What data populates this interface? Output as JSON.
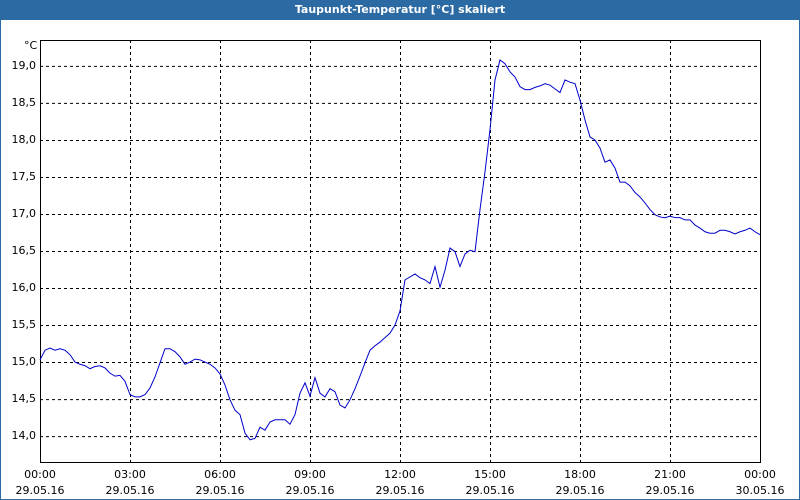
{
  "chart_data": {
    "type": "line",
    "title": "Taupunkt-Temperatur [°C] skaliert",
    "y_unit": "°C",
    "grid": true,
    "x": [
      0,
      10,
      20,
      30,
      40,
      50,
      60,
      70,
      80,
      90,
      100,
      110,
      120,
      130,
      140,
      150,
      160,
      170,
      180,
      190,
      200,
      210,
      220,
      230,
      240,
      250,
      260,
      270,
      280,
      290,
      300,
      310,
      320,
      330,
      340,
      350,
      360,
      370,
      380,
      390,
      400,
      410,
      420,
      430,
      440,
      450,
      460,
      470,
      480,
      490,
      500,
      510,
      520,
      530,
      540,
      550,
      560,
      570,
      580,
      590,
      600,
      610,
      620,
      630,
      640,
      650,
      660,
      670,
      680,
      690,
      700,
      710,
      720,
      730,
      740,
      750,
      760,
      770,
      780,
      790,
      800,
      810,
      820,
      830,
      840,
      850,
      860,
      870,
      880,
      890,
      900,
      910,
      920,
      930,
      940,
      950,
      960,
      970,
      980,
      990,
      1000,
      1010,
      1020,
      1030,
      1040,
      1050,
      1060,
      1070,
      1080,
      1090,
      1100,
      1110,
      1120,
      1130,
      1140,
      1150,
      1160,
      1170,
      1180,
      1190,
      1200,
      1210,
      1220,
      1230,
      1240,
      1250,
      1260,
      1270,
      1280,
      1290,
      1300,
      1310,
      1320,
      1330,
      1340,
      1350,
      1360,
      1370,
      1380,
      1390,
      1400,
      1410,
      1420,
      1430,
      1440
    ],
    "series": [
      {
        "name": "Taupunkt-Temperatur",
        "color": "#0000cc",
        "values": [
          15.03,
          15.16,
          15.19,
          15.16,
          15.18,
          15.16,
          15.1,
          15.0,
          14.97,
          14.95,
          14.91,
          14.94,
          14.95,
          14.92,
          14.85,
          14.81,
          14.82,
          14.74,
          14.56,
          14.53,
          14.53,
          14.56,
          14.65,
          14.8,
          14.99,
          15.18,
          15.18,
          15.14,
          15.07,
          14.97,
          15.0,
          15.04,
          15.03,
          15.0,
          14.97,
          14.92,
          14.84,
          14.69,
          14.49,
          14.35,
          14.29,
          14.04,
          13.95,
          13.97,
          14.12,
          14.08,
          14.19,
          14.22,
          14.22,
          14.22,
          14.16,
          14.29,
          14.58,
          14.72,
          14.54,
          14.79,
          14.58,
          14.53,
          14.64,
          14.6,
          14.42,
          14.38,
          14.49,
          14.64,
          14.81,
          14.99,
          15.16,
          15.22,
          15.27,
          15.33,
          15.39,
          15.5,
          15.69,
          16.11,
          16.15,
          16.19,
          16.14,
          16.11,
          16.06,
          16.29,
          16.01,
          16.24,
          16.54,
          16.49,
          16.29,
          16.46,
          16.51,
          16.49,
          17.06,
          17.57,
          18.14,
          18.81,
          19.08,
          19.03,
          18.92,
          18.85,
          18.72,
          18.68,
          18.68,
          18.71,
          18.73,
          18.76,
          18.74,
          18.69,
          18.64,
          18.81,
          18.78,
          18.76,
          18.54,
          18.27,
          18.04,
          18.0,
          17.89,
          17.7,
          17.73,
          17.62,
          17.43,
          17.43,
          17.38,
          17.29,
          17.23,
          17.15,
          17.06,
          16.99,
          16.96,
          16.95,
          16.97,
          16.95,
          16.95,
          16.92,
          16.92,
          16.85,
          16.81,
          16.76,
          16.74,
          16.74,
          16.78,
          16.78,
          16.76,
          16.73,
          16.76,
          16.78,
          16.81,
          16.76,
          16.72
        ]
      }
    ],
    "xlim": [
      0,
      1440
    ],
    "xticks": [
      {
        "value": 0,
        "label": "00:00"
      },
      {
        "value": 180,
        "label": "03:00"
      },
      {
        "value": 360,
        "label": "06:00"
      },
      {
        "value": 540,
        "label": "09:00"
      },
      {
        "value": 720,
        "label": "12:00"
      },
      {
        "value": 900,
        "label": "15:00"
      },
      {
        "value": 1080,
        "label": "18:00"
      },
      {
        "value": 1260,
        "label": "21:00"
      },
      {
        "value": 1440,
        "label": "00:00"
      }
    ],
    "xtick_dates": [
      "29.05.16",
      "29.05.16",
      "29.05.16",
      "29.05.16",
      "29.05.16",
      "29.05.16",
      "29.05.16",
      "29.05.16",
      "30.05.16"
    ],
    "ylim": [
      13.65,
      19.35
    ],
    "yticks": [
      {
        "value": 14,
        "label": "14,0"
      },
      {
        "value": 14.5,
        "label": "14,5"
      },
      {
        "value": 15,
        "label": "15,0"
      },
      {
        "value": 15.5,
        "label": "15,5"
      },
      {
        "value": 16,
        "label": "16,0"
      },
      {
        "value": 16.5,
        "label": "16,5"
      },
      {
        "value": 17,
        "label": "17,0"
      },
      {
        "value": 17.5,
        "label": "17,5"
      },
      {
        "value": 18,
        "label": "18,0"
      },
      {
        "value": 18.5,
        "label": "18,5"
      },
      {
        "value": 19,
        "label": "19,0"
      }
    ]
  }
}
